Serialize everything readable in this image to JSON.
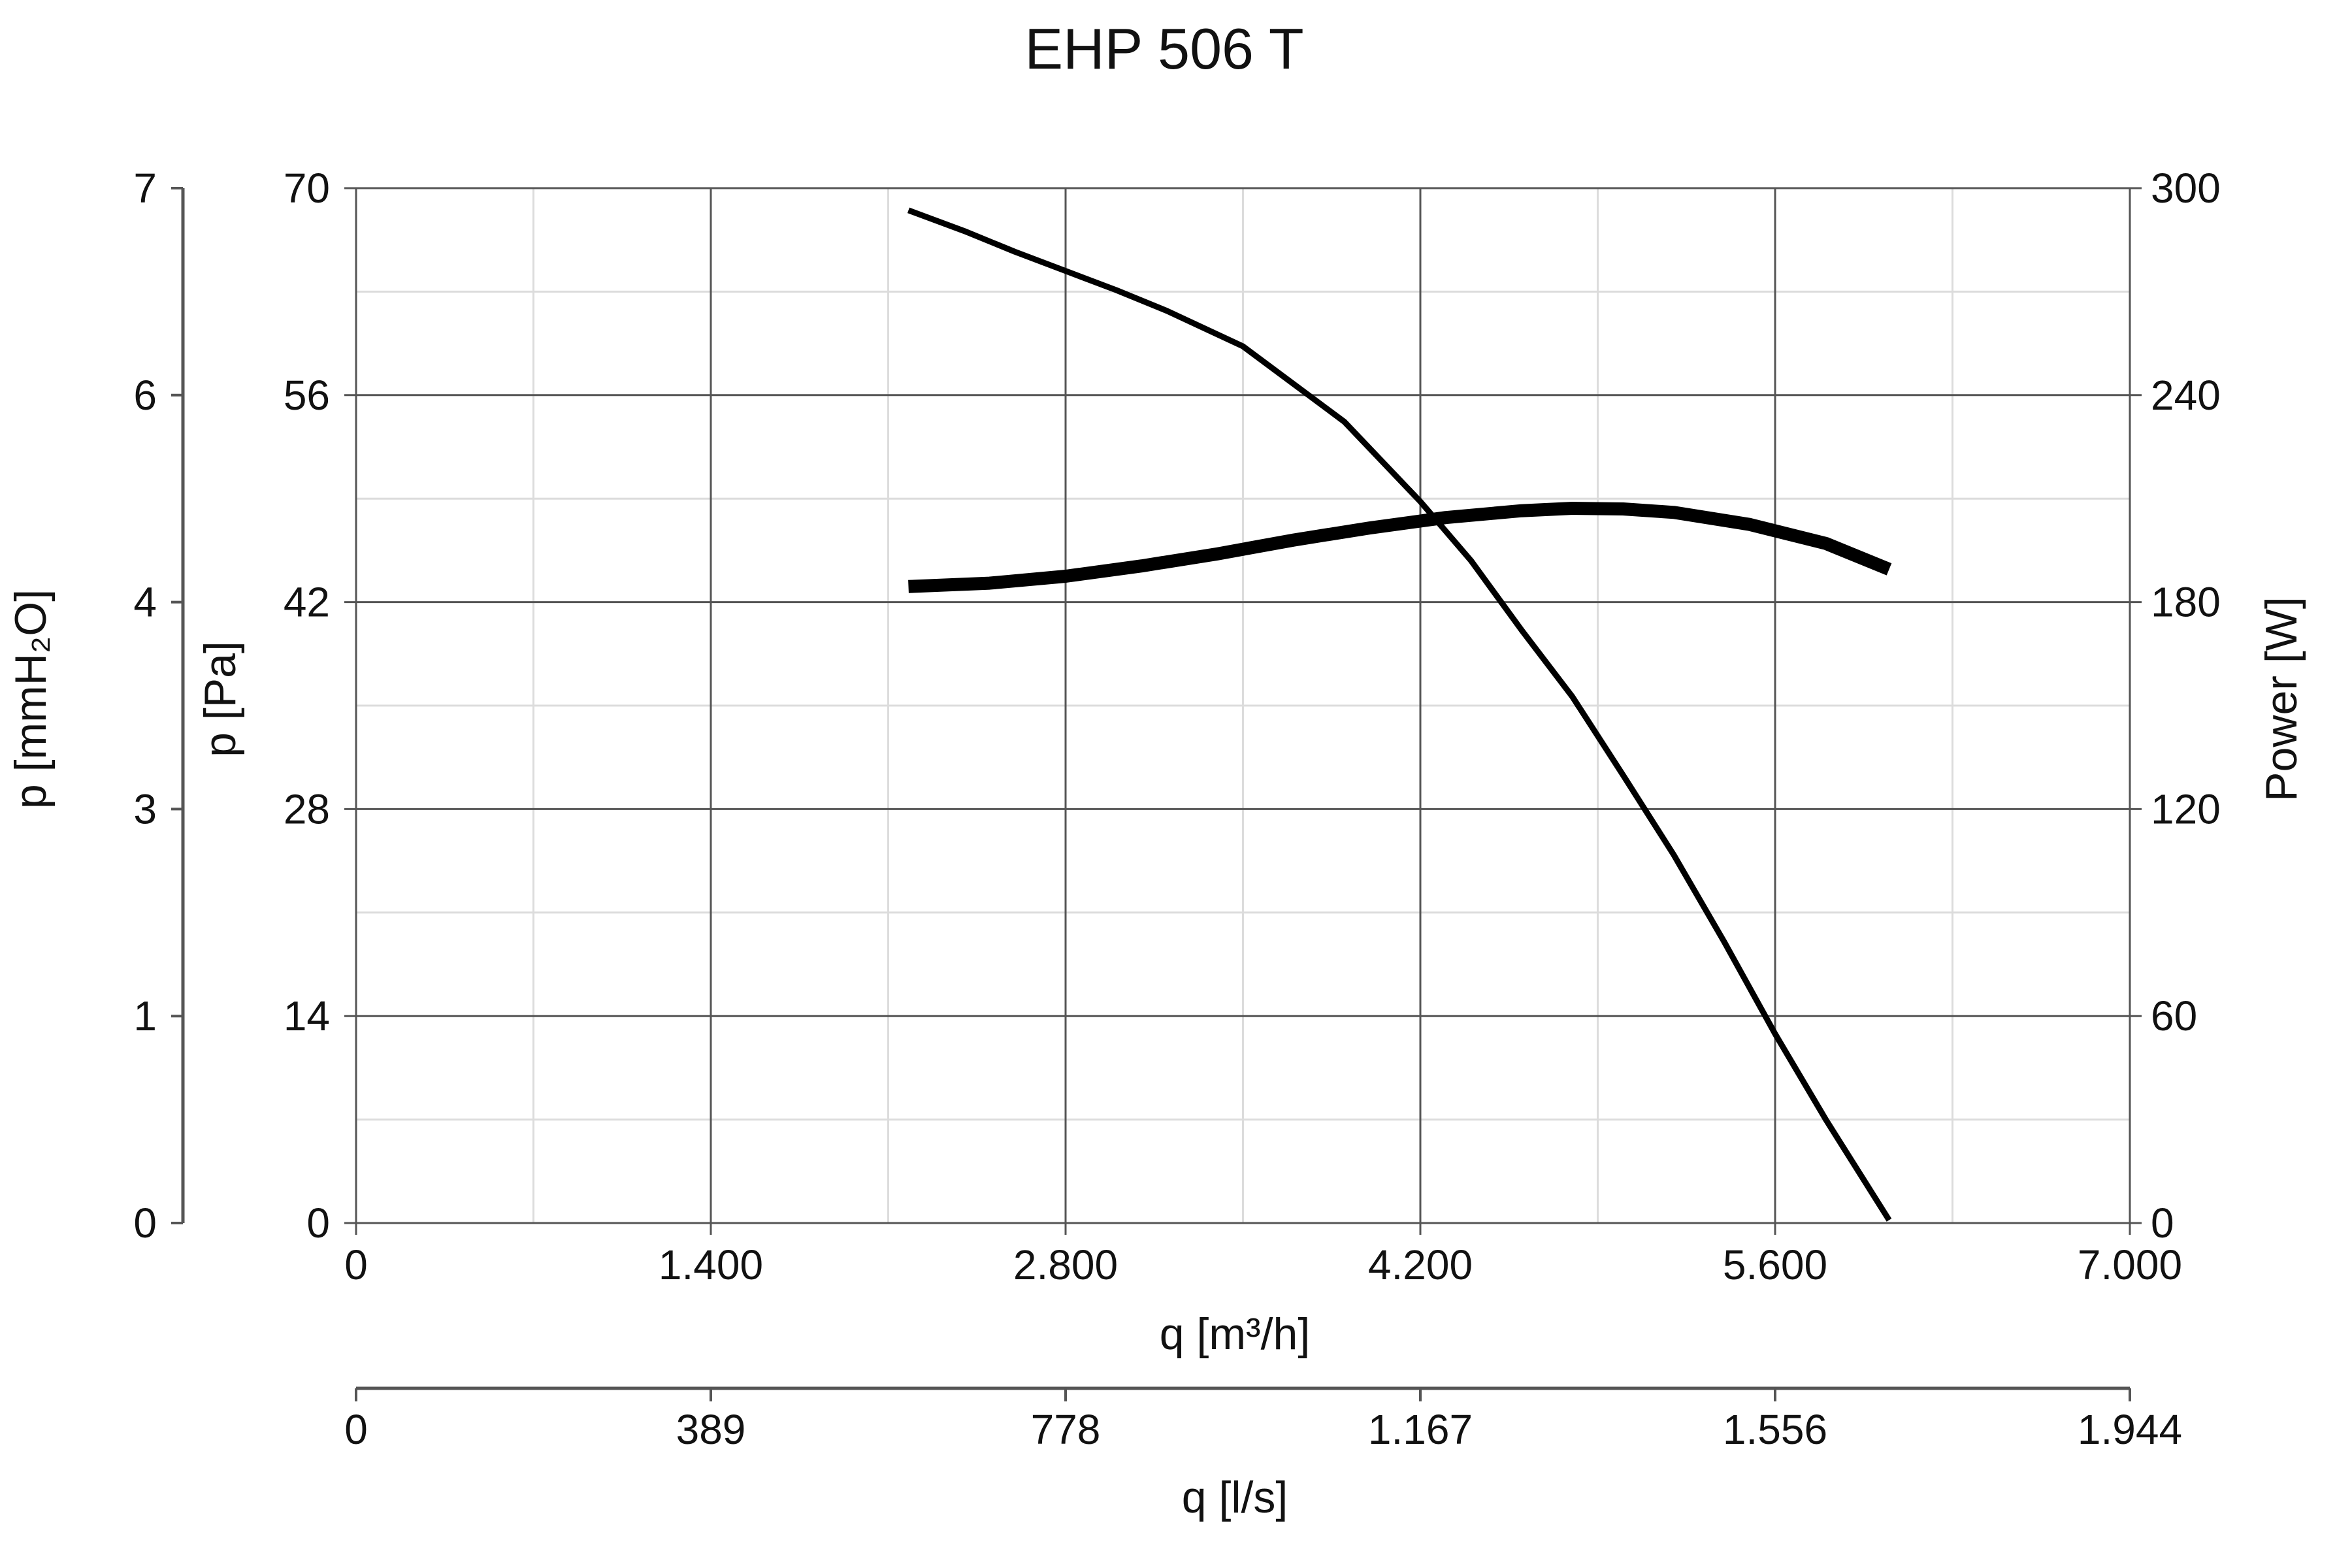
{
  "chart_data": {
    "type": "line",
    "title": "EHP 506 T",
    "xlabel": "q [m³/h]",
    "xlabel_secondary": "q [l/s]",
    "ylabel": "p [Pa]",
    "ylabel_secondary": "p [mmH₂O]",
    "ylabel_right": "Power [W]",
    "xlim": [
      0,
      7000
    ],
    "ylim": [
      0,
      70
    ],
    "ylim_right": [
      0,
      300
    ],
    "x_ticks": [
      "0",
      "1.400",
      "2.800",
      "4.200",
      "5.600",
      "7.000"
    ],
    "x_ticks_secondary": [
      "0",
      "389",
      "778",
      "1.167",
      "1.556",
      "1.944"
    ],
    "y_ticks": [
      "0",
      "14",
      "28",
      "42",
      "56",
      "70"
    ],
    "y_ticks_secondary": [
      "0",
      "1",
      "3",
      "4",
      "6",
      "7"
    ],
    "y_ticks_right": [
      "0",
      "60",
      "120",
      "180",
      "240",
      "300"
    ],
    "grid": true,
    "series": [
      {
        "axis": "left",
        "x": [
          2180,
          2400,
          2600,
          2800,
          3000,
          3200,
          3500,
          3900,
          4200,
          4400,
          4600,
          4800,
          5000,
          5200,
          5400,
          5600,
          5800,
          6050
        ],
        "y": [
          68.5,
          67.1,
          65.7,
          64.4,
          63.1,
          61.7,
          59.3,
          54.2,
          48.8,
          44.8,
          40.1,
          35.6,
          30.3,
          24.9,
          19.0,
          12.8,
          7.0,
          0.2
        ]
      },
      {
        "axis": "right",
        "x": [
          2180,
          2500,
          2800,
          3100,
          3400,
          3700,
          4000,
          4300,
          4600,
          4800,
          5000,
          5200,
          5500,
          5800,
          6050
        ],
        "y": [
          184.5,
          185.5,
          187.5,
          190.5,
          194.0,
          198.0,
          201.5,
          204.5,
          206.5,
          207.2,
          207.0,
          206.0,
          202.5,
          197.0,
          189.5
        ]
      }
    ]
  }
}
